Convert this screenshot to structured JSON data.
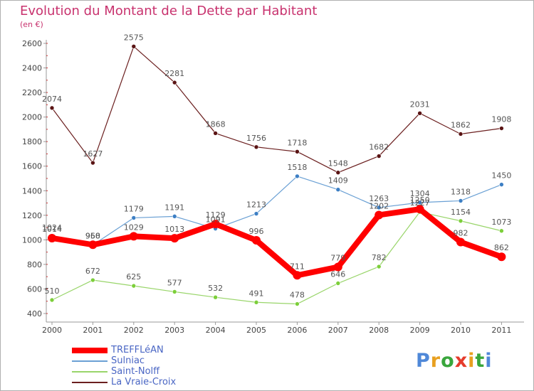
{
  "title": "Evolution du Montant de la Dette par Habitant",
  "subtitle": "(en €)",
  "logo": {
    "text": "Proxiti",
    "letter_colors": [
      "#4f88d8",
      "#e8a020",
      "#39a63c",
      "#e53b2c",
      "#e8a020",
      "#39a63c",
      "#4f88d8"
    ]
  },
  "chart_data": {
    "type": "line",
    "title": "Evolution du Montant de la Dette par Habitant",
    "subtitle": "(en €)",
    "xlabel": "",
    "ylabel": "",
    "ylim": [
      400,
      2600
    ],
    "y_ticks": [
      400,
      600,
      800,
      1000,
      1200,
      1400,
      1600,
      1800,
      2000,
      2200,
      2400,
      2600
    ],
    "grid": false,
    "legend_position": "bottom-left",
    "x": [
      "2000",
      "2001",
      "2002",
      "2003",
      "2004",
      "2005",
      "2006",
      "2007",
      "2008",
      "2009",
      "2010",
      "2011"
    ],
    "series": [
      {
        "name": "La Vraie-Croix",
        "color": "#6b1f1f",
        "values": [
          2074,
          1627,
          2575,
          2281,
          1868,
          1756,
          1718,
          1548,
          1682,
          2031,
          1862,
          1908
        ]
      },
      {
        "name": "Saint-Nolff",
        "color": "#99d56a",
        "values": [
          510,
          672,
          625,
          577,
          532,
          491,
          478,
          646,
          782,
          1227,
          1154,
          1073
        ]
      },
      {
        "name": "Sulniac",
        "color": "#6aa0d4",
        "values": [
          1024,
          958,
          1179,
          1191,
          1091,
          1213,
          1518,
          1409,
          1263,
          1304,
          1318,
          1450
        ]
      },
      {
        "name": "TREFFLéAN",
        "color": "#ff0000",
        "values": [
          1014,
          960,
          1029,
          1013,
          1129,
          996,
          711,
          779,
          1202,
          1250,
          982,
          862
        ]
      }
    ]
  },
  "legend": [
    {
      "name": "TREFFLéAN",
      "color": "#ff0000"
    },
    {
      "name": "Sulniac",
      "color": "#6aa0d4"
    },
    {
      "name": "Saint-Nolff",
      "color": "#99d56a"
    },
    {
      "name": "La Vraie-Croix",
      "color": "#6b1f1f"
    }
  ]
}
